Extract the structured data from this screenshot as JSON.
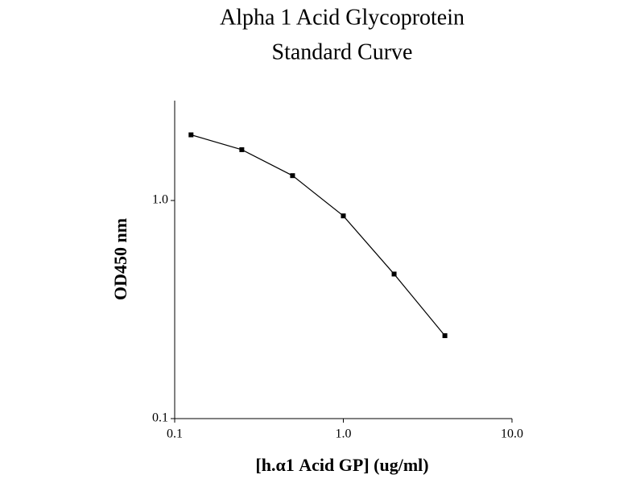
{
  "chart_data": {
    "type": "line",
    "title": [
      "Alpha 1 Acid Glycoprotein",
      "Standard Curve"
    ],
    "x_label": "[h.α1 Acid GP] (ug/ml)",
    "y_label": "OD450 nm",
    "x": [
      0.125,
      0.25,
      0.5,
      1,
      2,
      4
    ],
    "series": [
      {
        "color": "#000000",
        "values": [
          2.0,
          1.71,
          1.3,
          0.85,
          0.46,
          0.24
        ]
      }
    ],
    "xlog": true,
    "ylog": true,
    "xlim": [
      0.1,
      10
    ],
    "ylim": [
      0.1,
      2.87
    ],
    "xticks": [
      0.1,
      {
        "value": 1,
        "label": "1.0"
      },
      {
        "value": 10,
        "label": "10.0"
      }
    ],
    "yticks": [
      0.1,
      {
        "value": 1,
        "label": "1.0"
      }
    ]
  }
}
